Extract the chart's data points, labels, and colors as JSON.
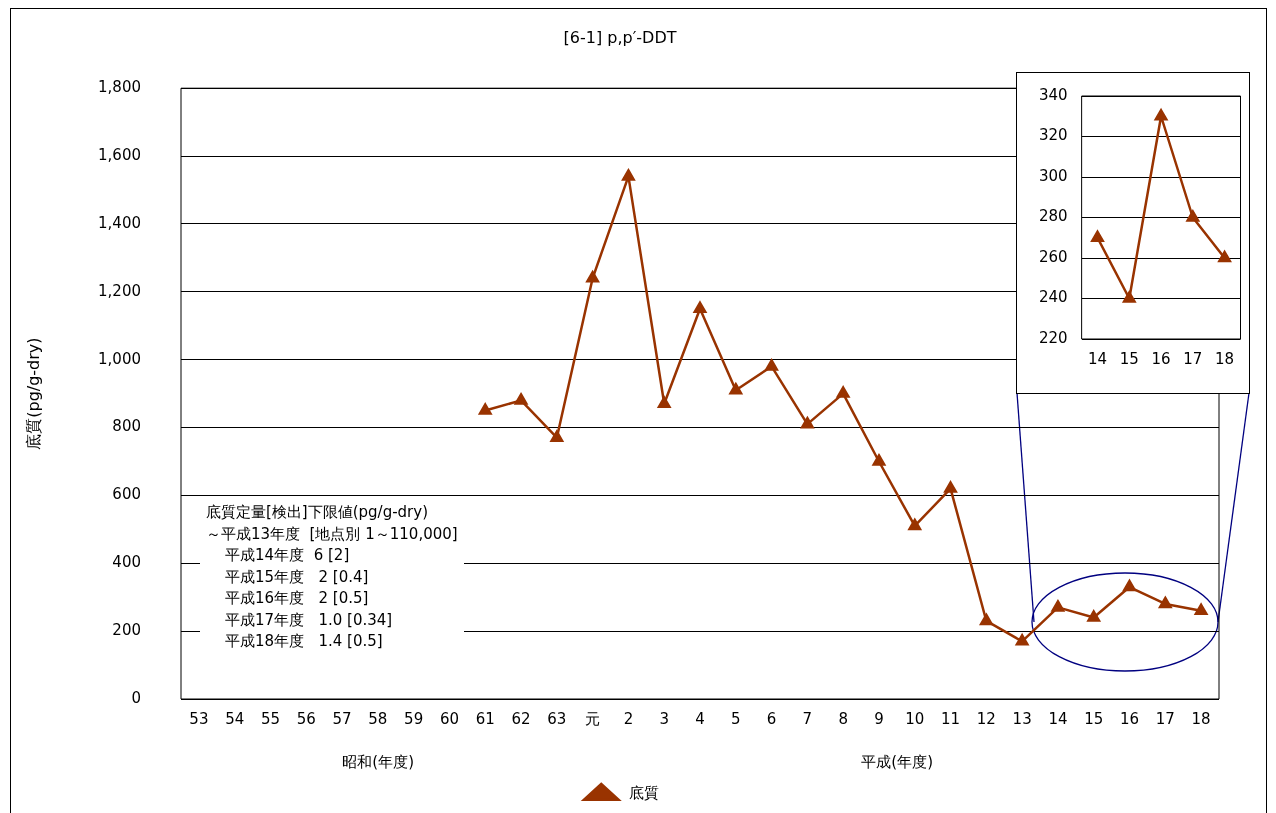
{
  "chart_data": [
    {
      "type": "line",
      "title": "[6-1] p,p′-DDT",
      "ylabel": "底質(pg/g-dry)",
      "categories": [
        "53",
        "54",
        "55",
        "56",
        "57",
        "58",
        "59",
        "60",
        "61",
        "62",
        "63",
        "元",
        "2",
        "3",
        "4",
        "5",
        "6",
        "7",
        "8",
        "9",
        "10",
        "11",
        "12",
        "13",
        "14",
        "15",
        "16",
        "17",
        "18"
      ],
      "series": [
        {
          "name": "底質",
          "color": "#993300",
          "values": [
            null,
            null,
            null,
            null,
            null,
            null,
            null,
            null,
            850,
            880,
            770,
            1240,
            1540,
            870,
            1150,
            910,
            980,
            810,
            900,
            700,
            510,
            620,
            230,
            170,
            270,
            240,
            330,
            280,
            260
          ]
        }
      ],
      "ylim": [
        0,
        1800
      ],
      "yticks": [
        0,
        200,
        400,
        600,
        800,
        {
          "value": 1000,
          "label": "1,000"
        },
        {
          "value": 1200,
          "label": "1,200"
        },
        {
          "value": 1400,
          "label": "1,400"
        },
        {
          "value": 1600,
          "label": "1,600"
        },
        {
          "value": 1800,
          "label": "1,800"
        }
      ],
      "grid": "y",
      "legend": "bottom",
      "marker": "triangle",
      "line_style": "solid",
      "annotations": [
        "昭和(年度)",
        "平成(年度)",
        "底質定量[検出]下限値(pg/g-dry)\n～平成13年度  [地点別 1～110,000]\n    平成14年度  6 [2]\n    平成15年度   2 [0.4]\n    平成16年度   2 [0.5]\n    平成17年度   1.0 [0.34]\n    平成18年度   1.4 [0.5]"
      ]
    },
    {
      "type": "line",
      "categories": [
        "14",
        "15",
        "16",
        "17",
        "18"
      ],
      "series": [
        {
          "color": "#993300",
          "values": [
            270,
            240,
            330,
            280,
            260
          ]
        }
      ],
      "ylim": [
        220,
        340
      ],
      "yticks": [
        220,
        240,
        260,
        280,
        300,
        320,
        340
      ],
      "grid": "y",
      "marker": "triangle",
      "line_style": "solid"
    }
  ]
}
